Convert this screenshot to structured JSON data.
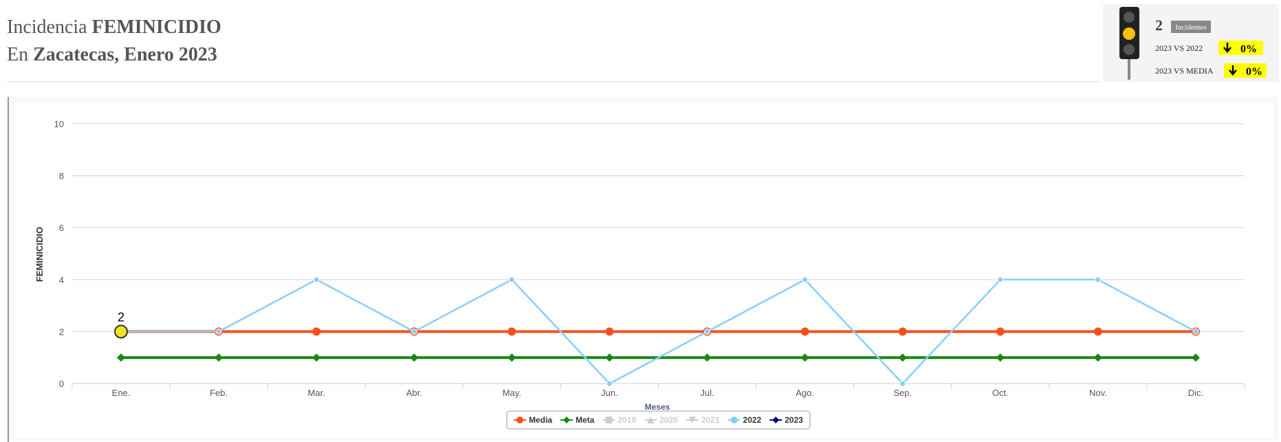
{
  "header": {
    "title": {
      "prefix": "Incidencia",
      "subject": "FEMINICIDIO"
    },
    "subtitle": {
      "prefix": "En",
      "place": "Zacatecas",
      "period": ", Enero 2023"
    }
  },
  "indicator": {
    "count": 2,
    "count_label": "Incidentes",
    "comparisons": [
      {
        "label": "2023 VS 2022",
        "value": "0%"
      },
      {
        "label": "2023 VS MEDIA",
        "value": "0%"
      }
    ]
  },
  "chart_data": {
    "type": "line",
    "y_label": "FEMINICIDIO",
    "x_label": "Meses",
    "categories": [
      "Ene.",
      "Feb.",
      "Mar.",
      "Abr.",
      "May.",
      "Jun.",
      "Jul.",
      "Ago.",
      "Sep.",
      "Oct.",
      "Nov.",
      "Dic."
    ],
    "ylim": [
      0,
      10
    ],
    "yticks": [
      0,
      2,
      4,
      6,
      8,
      10
    ],
    "grid": true,
    "legend": "bottom",
    "series": [
      {
        "name": "Media",
        "color": "#f4511e",
        "marker": "circle",
        "visible": true,
        "values": [
          2,
          2,
          2,
          2,
          2,
          2,
          2,
          2,
          2,
          2,
          2,
          2
        ]
      },
      {
        "name": "Meta",
        "color": "#138a13",
        "marker": "diamond",
        "visible": true,
        "values": [
          1,
          1,
          1,
          1,
          1,
          1,
          1,
          1,
          1,
          1,
          1,
          1
        ]
      },
      {
        "name": "2019",
        "color": "#cccccc",
        "marker": "square",
        "visible": false,
        "values": [
          null,
          null,
          null,
          null,
          null,
          null,
          null,
          null,
          null,
          null,
          null,
          null
        ]
      },
      {
        "name": "2020",
        "color": "#cccccc",
        "marker": "triangle",
        "visible": false,
        "values": [
          null,
          null,
          null,
          null,
          null,
          null,
          null,
          null,
          null,
          null,
          null,
          null
        ]
      },
      {
        "name": "2021",
        "color": "#cccccc",
        "marker": "triangle-down",
        "visible": false,
        "values": [
          null,
          null,
          null,
          null,
          null,
          null,
          null,
          null,
          null,
          null,
          null,
          null
        ]
      },
      {
        "name": "2022",
        "color": "#87cefa",
        "marker": "circle",
        "visible": true,
        "values": [
          2,
          2,
          4,
          2,
          4,
          0,
          2,
          4,
          0,
          4,
          4,
          2
        ]
      },
      {
        "name": "2023",
        "color": "#000080",
        "marker": "diamond",
        "visible": true,
        "highlight_color": "#f2e02a",
        "values": [
          2,
          null,
          null,
          null,
          null,
          null,
          null,
          null,
          null,
          null,
          null,
          null
        ]
      }
    ]
  }
}
